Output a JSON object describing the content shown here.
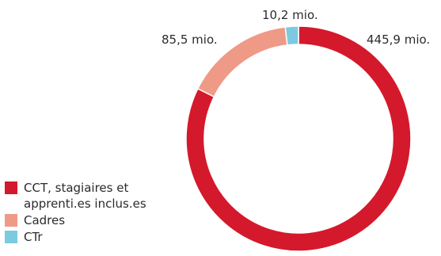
{
  "chart_data": {
    "type": "pie",
    "style": "donut",
    "categories": [
      "CCT, stagiaires et apprenti.es inclus.es",
      "Cadres",
      "CTr"
    ],
    "values": [
      445.9,
      85.5,
      10.2
    ],
    "data_labels": [
      "445,9 mio.",
      "85,5 mio.",
      "10,2 mio."
    ],
    "colors": [
      "#d4192c",
      "#ef9a86",
      "#7ccae0"
    ],
    "legend_position": "bottom-left"
  },
  "legend": [
    {
      "label": "CCT, stagiaires et apprenti.es inclus.es",
      "color": "#d4192c"
    },
    {
      "label": "Cadres",
      "color": "#ef9a86"
    },
    {
      "label": "CTr",
      "color": "#7ccae0"
    }
  ]
}
